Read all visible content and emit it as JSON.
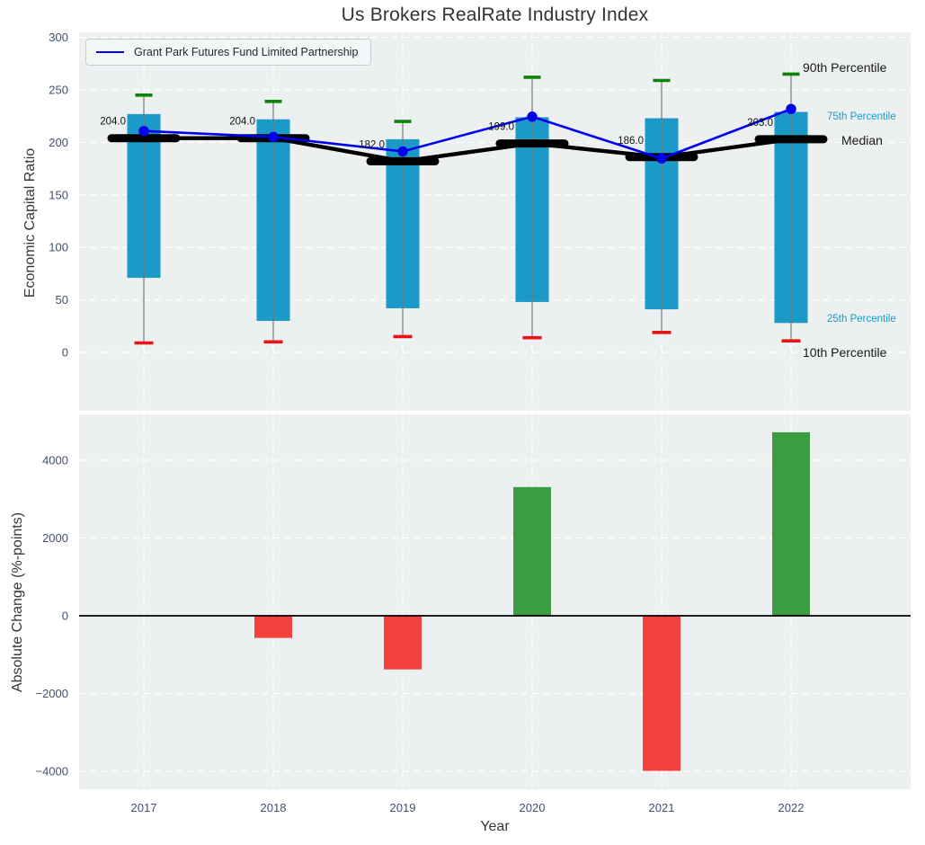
{
  "title": "Us Brokers RealRate Industry Index",
  "axes": {
    "top_ylabel": "Economic Capital Ratio",
    "bottom_ylabel": "Absolute Change (%-points)",
    "xlabel": "Year"
  },
  "legend": {
    "series_label": "Grant Park Futures Fund Limited Partnership"
  },
  "side_labels": {
    "p90": "90th Percentile",
    "p75": "75th Percentile",
    "median": "Median",
    "p25": "25th Percentile",
    "p10": "10th Percentile"
  },
  "colors": {
    "box": "#1b9ac8",
    "company_line": "#0000ee",
    "median": "#000000",
    "p90_cap": "#0a840a",
    "p10_cap": "#e81414",
    "whisker": "#777777",
    "positive_bar": "#3b9c42",
    "negative_bar": "#f5413e",
    "plot_bg": "#edf0f1",
    "grid": "#ffffff",
    "tick_text": "#44516b",
    "annotation_text": "#111111",
    "percentile_label_cyan": "#1b9ac8"
  },
  "chart_data": [
    {
      "type": "box-percentile-line",
      "title": "Us Brokers RealRate Industry Index",
      "ylabel": "Economic Capital Ratio",
      "categories": [
        "2017",
        "2018",
        "2019",
        "2020",
        "2021",
        "2022"
      ],
      "yticks": [
        0,
        50,
        100,
        150,
        200,
        250,
        300
      ],
      "ylim": [
        -58,
        305
      ],
      "grid": true,
      "legend_position": "upper left",
      "series": [
        {
          "name": "90th Percentile",
          "role": "p90",
          "values": [
            245,
            239,
            220,
            262,
            259,
            265
          ]
        },
        {
          "name": "75th Percentile",
          "role": "p75",
          "values": [
            227,
            222,
            203,
            224,
            223,
            229
          ]
        },
        {
          "name": "Median",
          "role": "median",
          "values": [
            204,
            204,
            182,
            199,
            186,
            203
          ]
        },
        {
          "name": "25th Percentile",
          "role": "p25",
          "values": [
            71,
            30,
            42,
            48,
            41,
            28
          ]
        },
        {
          "name": "10th Percentile",
          "role": "p10",
          "values": [
            9,
            10,
            15,
            14,
            19,
            11
          ]
        },
        {
          "name": "Grant Park Futures Fund Limited Partnership",
          "role": "company",
          "values": [
            210.9,
            205.2,
            191.4,
            224.5,
            184.6,
            231.8
          ]
        }
      ],
      "median_annotations": [
        "204.0",
        "204.0",
        "182.0",
        "199.0",
        "186.0",
        "203.0"
      ]
    },
    {
      "type": "bar",
      "ylabel": "Absolute Change (%-points)",
      "xlabel": "Year",
      "categories": [
        "2017",
        "2018",
        "2019",
        "2020",
        "2021",
        "2022"
      ],
      "values": [
        null,
        -570,
        -1380,
        3310,
        -3990,
        4720
      ],
      "yticks": [
        -4000,
        -2000,
        0,
        2000,
        4000
      ],
      "ylim": [
        -4440,
        5200
      ],
      "grid": true
    }
  ]
}
